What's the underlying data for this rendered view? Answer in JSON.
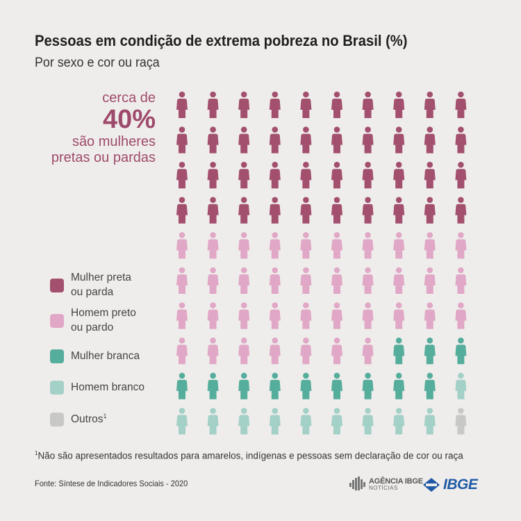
{
  "header": {
    "title": "Pessoas em condição de extrema pobreza no Brasil (%)",
    "subtitle": "Por sexo e cor ou raça"
  },
  "callout": {
    "line1": "cerca de",
    "value": "40%",
    "line3": "são mulheres",
    "line4": "pretas ou pardas",
    "color": "#9e4a6c"
  },
  "chart_data": {
    "type": "icon-array",
    "total_icons": 100,
    "columns": 10,
    "fill_order": "row-major from top-left",
    "series": [
      {
        "name": "Mulher preta ou parda",
        "value": 40,
        "color": "#a3506f"
      },
      {
        "name": "Homem preto ou pardo",
        "value": 37,
        "color": "#e0a8c6"
      },
      {
        "name": "Mulher branca",
        "value": 12,
        "color": "#55ad9c"
      },
      {
        "name": "Homem branco",
        "value": 10,
        "color": "#a3d0c7"
      },
      {
        "name": "Outros",
        "value": 1,
        "color": "#c8c8c6"
      }
    ]
  },
  "legend": {
    "items": [
      {
        "line1": "Mulher preta",
        "line2": "ou parda",
        "sup": "",
        "color": "#a3506f"
      },
      {
        "line1": "Homem preto",
        "line2": "ou pardo",
        "sup": "",
        "color": "#e0a8c6"
      },
      {
        "line1": "Mulher branca",
        "line2": "",
        "sup": "",
        "color": "#55ad9c"
      },
      {
        "line1": "Homem branco",
        "line2": "",
        "sup": "",
        "color": "#a3d0c7"
      },
      {
        "line1": "Outros",
        "line2": "",
        "sup": "1",
        "color": "#c8c8c6"
      }
    ]
  },
  "footnote": {
    "sup": "1",
    "text": "Não são apresentados resultados para amarelos, indígenas e pessoas sem declaração de cor ou raça"
  },
  "source": "Fonte: Síntese de Indicadores Sociais - 2020",
  "logos": {
    "agencia_line1": "AGÊNCIA IBGE",
    "agencia_line2": "NOTÍCIAS",
    "ibge": "IBGE",
    "ibge_color": "#1f5aa6"
  }
}
